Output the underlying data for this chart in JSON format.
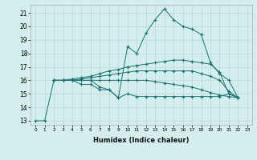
{
  "bg_color": "#d3eeec",
  "grid_color": "#b8d8d5",
  "line_color": "#1a7070",
  "xlabel": "Humidex (Indice chaleur)",
  "ylim": [
    12.7,
    21.6
  ],
  "xlim": [
    -0.5,
    23.5
  ],
  "yticks": [
    13,
    14,
    15,
    16,
    17,
    18,
    19,
    20,
    21
  ],
  "xticks": [
    0,
    1,
    2,
    3,
    4,
    5,
    6,
    7,
    8,
    9,
    10,
    11,
    12,
    13,
    14,
    15,
    16,
    17,
    18,
    19,
    20,
    21,
    22,
    23
  ],
  "series": [
    {
      "x": [
        0,
        1,
        2,
        3,
        4,
        5,
        6,
        7,
        8,
        9,
        10,
        11,
        12,
        13,
        14,
        15,
        16,
        17,
        18,
        19,
        20,
        21,
        22
      ],
      "y": [
        13.0,
        13.0,
        16.0,
        16.0,
        16.0,
        16.0,
        16.0,
        15.5,
        15.3,
        14.7,
        18.5,
        18.0,
        19.5,
        20.5,
        21.3,
        20.5,
        20.0,
        19.8,
        19.4,
        17.3,
        16.5,
        16.0,
        14.7
      ]
    },
    {
      "x": [
        2,
        3,
        4,
        5,
        6,
        7,
        8,
        9,
        10,
        11,
        12,
        13,
        14,
        15,
        16,
        17,
        18,
        19,
        20,
        21,
        22
      ],
      "y": [
        16.0,
        16.0,
        16.1,
        16.2,
        16.3,
        16.5,
        16.7,
        16.8,
        17.0,
        17.1,
        17.2,
        17.3,
        17.4,
        17.5,
        17.5,
        17.4,
        17.3,
        17.2,
        16.6,
        15.0,
        14.7
      ]
    },
    {
      "x": [
        2,
        3,
        4,
        5,
        6,
        7,
        8,
        9,
        10,
        11,
        12,
        13,
        14,
        15,
        16,
        17,
        18,
        19,
        20,
        21,
        22
      ],
      "y": [
        16.0,
        16.0,
        16.0,
        16.1,
        16.2,
        16.3,
        16.4,
        16.5,
        16.6,
        16.7,
        16.7,
        16.7,
        16.7,
        16.7,
        16.7,
        16.7,
        16.5,
        16.3,
        16.0,
        15.2,
        14.7
      ]
    },
    {
      "x": [
        2,
        3,
        4,
        5,
        6,
        7,
        8,
        9,
        10,
        11,
        12,
        13,
        14,
        15,
        16,
        17,
        18,
        19,
        20,
        21,
        22
      ],
      "y": [
        16.0,
        16.0,
        16.0,
        16.0,
        16.0,
        16.0,
        16.0,
        16.0,
        16.0,
        16.0,
        16.0,
        15.9,
        15.8,
        15.7,
        15.6,
        15.5,
        15.3,
        15.1,
        14.9,
        14.8,
        14.7
      ]
    },
    {
      "x": [
        2,
        3,
        4,
        5,
        6,
        7,
        8,
        9,
        10,
        11,
        12,
        13,
        14,
        15,
        16,
        17,
        18,
        19,
        20,
        21,
        22
      ],
      "y": [
        16.0,
        16.0,
        16.0,
        15.7,
        15.7,
        15.3,
        15.3,
        14.7,
        15.0,
        14.8,
        14.8,
        14.8,
        14.8,
        14.8,
        14.8,
        14.8,
        14.8,
        14.8,
        14.8,
        15.0,
        14.7
      ]
    }
  ]
}
